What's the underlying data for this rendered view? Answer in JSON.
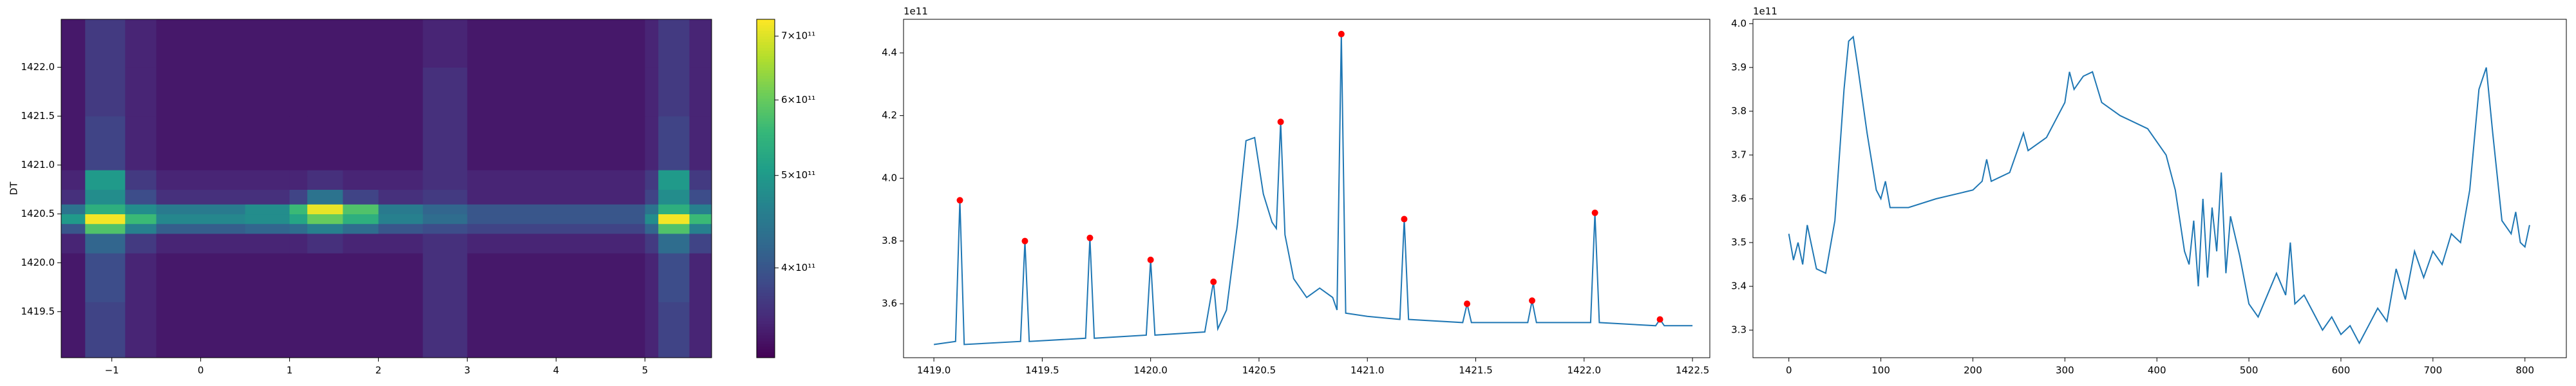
{
  "chart_data": [
    {
      "type": "heatmap",
      "ylabel": "DT",
      "colormap": "viridis",
      "colorbar_scale": "log",
      "xlim": [
        -1.57,
        5.75
      ],
      "ylim": [
        1419.03,
        1422.49
      ],
      "xticks": [
        {
          "value": -1,
          "label": "−1"
        },
        0,
        1,
        2,
        3,
        4,
        5
      ],
      "yticks": [
        1419.5,
        {
          "value": 1420,
          "label": "1420.0"
        },
        1420.5,
        {
          "value": 1421,
          "label": "1421.0"
        },
        1421.5,
        {
          "value": 1422,
          "label": "1422.0"
        }
      ],
      "clim": [
        322000000000.0,
        729000000000.0
      ],
      "cticks": [
        {
          "value": 400000000000.0,
          "label": "4×10¹¹"
        },
        {
          "value": 500000000000.0,
          "label": "5×10¹¹"
        },
        {
          "value": 600000000000.0,
          "label": "6×10¹¹"
        },
        {
          "value": 700000000000.0,
          "label": "7×10¹¹"
        }
      ],
      "x_edges": [
        -1.57,
        -1.3,
        -0.85,
        -0.5,
        0.5,
        1.0,
        1.2,
        1.6,
        2.0,
        2.5,
        3.0,
        4.0,
        5.0,
        5.15,
        5.5,
        5.75
      ],
      "y_edges": [
        1419.03,
        1419.6,
        1420.1,
        1420.3,
        1420.4,
        1420.5,
        1420.6,
        1420.75,
        1420.95,
        1421.5,
        1422.0,
        1422.49
      ],
      "z": [
        [
          340000000000.0,
          380000000000.0,
          350000000000.0,
          340000000000.0,
          340000000000.0,
          340000000000.0,
          340000000000.0,
          340000000000.0,
          340000000000.0,
          360000000000.0,
          340000000000.0,
          340000000000.0,
          350000000000.0,
          380000000000.0,
          350000000000.0
        ],
        [
          340000000000.0,
          390000000000.0,
          350000000000.0,
          340000000000.0,
          340000000000.0,
          340000000000.0,
          340000000000.0,
          340000000000.0,
          340000000000.0,
          360000000000.0,
          340000000000.0,
          340000000000.0,
          350000000000.0,
          390000000000.0,
          350000000000.0
        ],
        [
          350000000000.0,
          420000000000.0,
          370000000000.0,
          350000000000.0,
          350000000000.0,
          350000000000.0,
          360000000000.0,
          350000000000.0,
          350000000000.0,
          360000000000.0,
          350000000000.0,
          350000000000.0,
          370000000000.0,
          430000000000.0,
          380000000000.0
        ],
        [
          400000000000.0,
          580000000000.0,
          460000000000.0,
          410000000000.0,
          420000000000.0,
          430000000000.0,
          460000000000.0,
          430000000000.0,
          400000000000.0,
          390000000000.0,
          380000000000.0,
          380000000000.0,
          420000000000.0,
          580000000000.0,
          460000000000.0
        ],
        [
          500000000000.0,
          720000000000.0,
          560000000000.0,
          470000000000.0,
          480000000000.0,
          520000000000.0,
          600000000000.0,
          540000000000.0,
          460000000000.0,
          430000000000.0,
          400000000000.0,
          400000000000.0,
          480000000000.0,
          720000000000.0,
          560000000000.0
        ],
        [
          440000000000.0,
          540000000000.0,
          480000000000.0,
          450000000000.0,
          480000000000.0,
          560000000000.0,
          710000000000.0,
          580000000000.0,
          450000000000.0,
          420000000000.0,
          400000000000.0,
          400000000000.0,
          440000000000.0,
          540000000000.0,
          460000000000.0
        ],
        [
          360000000000.0,
          480000000000.0,
          390000000000.0,
          360000000000.0,
          360000000000.0,
          380000000000.0,
          440000000000.0,
          380000000000.0,
          360000000000.0,
          370000000000.0,
          350000000000.0,
          350000000000.0,
          380000000000.0,
          480000000000.0,
          390000000000.0
        ],
        [
          350000000000.0,
          500000000000.0,
          370000000000.0,
          350000000000.0,
          350000000000.0,
          350000000000.0,
          360000000000.0,
          350000000000.0,
          350000000000.0,
          360000000000.0,
          350000000000.0,
          350000000000.0,
          370000000000.0,
          500000000000.0,
          370000000000.0
        ],
        [
          340000000000.0,
          380000000000.0,
          350000000000.0,
          340000000000.0,
          340000000000.0,
          340000000000.0,
          340000000000.0,
          340000000000.0,
          340000000000.0,
          360000000000.0,
          340000000000.0,
          340000000000.0,
          350000000000.0,
          380000000000.0,
          350000000000.0
        ],
        [
          340000000000.0,
          370000000000.0,
          350000000000.0,
          340000000000.0,
          340000000000.0,
          340000000000.0,
          340000000000.0,
          340000000000.0,
          340000000000.0,
          360000000000.0,
          340000000000.0,
          340000000000.0,
          350000000000.0,
          370000000000.0,
          350000000000.0
        ],
        [
          340000000000.0,
          370000000000.0,
          350000000000.0,
          340000000000.0,
          340000000000.0,
          340000000000.0,
          340000000000.0,
          340000000000.0,
          340000000000.0,
          350000000000.0,
          340000000000.0,
          340000000000.0,
          350000000000.0,
          370000000000.0,
          350000000000.0
        ]
      ]
    },
    {
      "type": "line",
      "offset_text": "1e11",
      "xlim": [
        1418.86,
        1422.58
      ],
      "ylim": [
        3.428,
        4.507
      ],
      "xticks": [
        {
          "value": 1419,
          "label": "1419.0"
        },
        1419.5,
        {
          "value": 1420,
          "label": "1420.0"
        },
        1420.5,
        {
          "value": 1421,
          "label": "1421.0"
        },
        1421.5,
        {
          "value": 1422,
          "label": "1422.0"
        },
        1422.5
      ],
      "yticks": [
        3.6,
        3.8,
        {
          "value": 4,
          "label": "4.0"
        },
        4.2,
        4.4
      ],
      "series": [
        {
          "color": "#1f77b4",
          "x": [
            1419.0,
            1419.1,
            1419.12,
            1419.14,
            1419.4,
            1419.42,
            1419.44,
            1419.7,
            1419.72,
            1419.74,
            1419.98,
            1420.0,
            1420.02,
            1420.25,
            1420.29,
            1420.31,
            1420.35,
            1420.4,
            1420.44,
            1420.48,
            1420.52,
            1420.56,
            1420.58,
            1420.6,
            1420.62,
            1420.66,
            1420.72,
            1420.78,
            1420.84,
            1420.86,
            1420.88,
            1420.9,
            1421.0,
            1421.15,
            1421.17,
            1421.19,
            1421.44,
            1421.46,
            1421.48,
            1421.74,
            1421.76,
            1421.78,
            1422.03,
            1422.05,
            1422.07,
            1422.33,
            1422.35,
            1422.37,
            1422.5
          ],
          "values": [
            3.47,
            3.48,
            3.93,
            3.47,
            3.48,
            3.8,
            3.48,
            3.49,
            3.81,
            3.49,
            3.5,
            3.74,
            3.5,
            3.51,
            3.67,
            3.52,
            3.58,
            3.85,
            4.12,
            4.13,
            3.95,
            3.86,
            3.84,
            4.18,
            3.82,
            3.68,
            3.62,
            3.65,
            3.62,
            3.58,
            4.46,
            3.57,
            3.56,
            3.55,
            3.87,
            3.55,
            3.54,
            3.6,
            3.54,
            3.54,
            3.61,
            3.54,
            3.54,
            3.89,
            3.54,
            3.53,
            3.55,
            3.53,
            3.53
          ]
        },
        {
          "type": "scatter",
          "color": "#ff0000",
          "x": [
            1419.12,
            1419.42,
            1419.72,
            1420.0,
            1420.29,
            1420.6,
            1420.88,
            1421.17,
            1421.46,
            1421.76,
            1422.05,
            1422.35
          ],
          "values": [
            3.93,
            3.8,
            3.81,
            3.74,
            3.67,
            4.18,
            4.46,
            3.87,
            3.6,
            3.61,
            3.89,
            3.55
          ]
        }
      ]
    },
    {
      "type": "line",
      "offset_text": "1e11",
      "xlim": [
        -39,
        845
      ],
      "ylim": [
        3.237,
        4.01
      ],
      "xticks": [
        0,
        100,
        200,
        300,
        400,
        500,
        600,
        700,
        800
      ],
      "yticks": [
        3.3,
        3.4,
        3.5,
        3.6,
        3.7,
        3.8,
        3.9,
        {
          "value": 4,
          "label": "4.0"
        }
      ],
      "series": [
        {
          "color": "#1f77b4",
          "x": [
            0,
            5,
            10,
            15,
            20,
            30,
            40,
            50,
            60,
            65,
            70,
            75,
            85,
            95,
            100,
            105,
            110,
            130,
            160,
            200,
            210,
            215,
            220,
            240,
            255,
            260,
            280,
            300,
            305,
            310,
            320,
            330,
            340,
            360,
            390,
            410,
            420,
            430,
            435,
            440,
            445,
            450,
            455,
            460,
            465,
            470,
            475,
            480,
            490,
            500,
            510,
            520,
            530,
            540,
            545,
            550,
            560,
            570,
            580,
            590,
            600,
            610,
            620,
            630,
            640,
            650,
            660,
            670,
            680,
            690,
            700,
            710,
            720,
            730,
            740,
            750,
            758,
            765,
            775,
            785,
            790,
            795,
            800,
            805
          ],
          "values": [
            3.52,
            3.46,
            3.5,
            3.45,
            3.54,
            3.44,
            3.43,
            3.55,
            3.85,
            3.96,
            3.97,
            3.9,
            3.75,
            3.62,
            3.6,
            3.64,
            3.58,
            3.58,
            3.6,
            3.62,
            3.64,
            3.69,
            3.64,
            3.66,
            3.75,
            3.71,
            3.74,
            3.82,
            3.89,
            3.85,
            3.88,
            3.89,
            3.82,
            3.79,
            3.76,
            3.7,
            3.62,
            3.48,
            3.45,
            3.55,
            3.4,
            3.6,
            3.42,
            3.58,
            3.48,
            3.66,
            3.43,
            3.56,
            3.47,
            3.36,
            3.33,
            3.38,
            3.43,
            3.38,
            3.5,
            3.36,
            3.38,
            3.34,
            3.3,
            3.33,
            3.29,
            3.31,
            3.27,
            3.31,
            3.35,
            3.32,
            3.44,
            3.37,
            3.48,
            3.42,
            3.48,
            3.45,
            3.52,
            3.5,
            3.62,
            3.85,
            3.9,
            3.75,
            3.55,
            3.52,
            3.57,
            3.5,
            3.49,
            3.54
          ]
        }
      ]
    }
  ]
}
